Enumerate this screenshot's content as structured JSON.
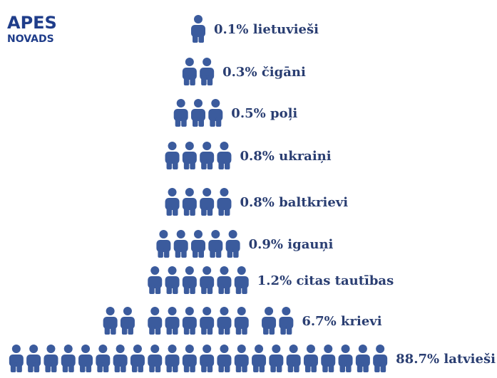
{
  "chart_data": {
    "type": "pictogram",
    "title": "APES",
    "subtitle": "NOVADS",
    "categories": [
      "lietuvieši",
      "čigāni",
      "poļi",
      "ukraiņi",
      "baltkrievi",
      "igauņi",
      "citas tautības",
      "krievi",
      "latvieši"
    ],
    "values": [
      0.1,
      0.3,
      0.5,
      0.8,
      0.8,
      0.9,
      1.2,
      6.7,
      88.7
    ],
    "value_labels": [
      "0.1%",
      "0.3%",
      "0.5%",
      "0.8%",
      "0.8%",
      "0.9%",
      "1.2%",
      "6.7%",
      "88.7%"
    ],
    "icons": [
      1,
      2,
      3,
      4,
      4,
      5,
      6,
      10,
      22
    ],
    "color": "#3b5b9d"
  }
}
